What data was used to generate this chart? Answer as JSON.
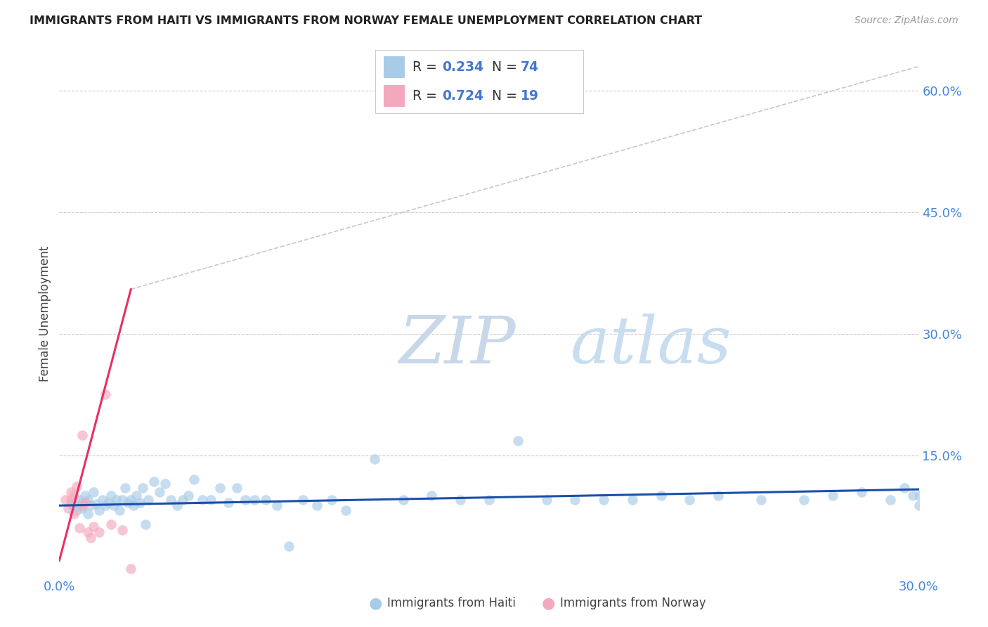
{
  "title": "IMMIGRANTS FROM HAITI VS IMMIGRANTS FROM NORWAY FEMALE UNEMPLOYMENT CORRELATION CHART",
  "source": "Source: ZipAtlas.com",
  "ylabel": "Female Unemployment",
  "xlim": [
    0.0,
    0.3
  ],
  "ylim": [
    0.0,
    0.65
  ],
  "haiti_R": 0.234,
  "haiti_N": 74,
  "norway_R": 0.724,
  "norway_N": 19,
  "haiti_color": "#a8cce8",
  "norway_color": "#f4a8bc",
  "haiti_line_color": "#1a4faa",
  "norway_line_color": "#e83060",
  "dashed_line_color": "#c8c8c8",
  "background_color": "#ffffff",
  "legend_labels": [
    "Immigrants from Haiti",
    "Immigrants from Norway"
  ],
  "legend_text_color": "#4477cc",
  "haiti_scatter_x": [
    0.004,
    0.005,
    0.006,
    0.007,
    0.008,
    0.008,
    0.009,
    0.01,
    0.01,
    0.011,
    0.012,
    0.013,
    0.014,
    0.015,
    0.016,
    0.017,
    0.018,
    0.019,
    0.02,
    0.021,
    0.022,
    0.023,
    0.024,
    0.025,
    0.026,
    0.027,
    0.028,
    0.029,
    0.03,
    0.031,
    0.033,
    0.035,
    0.037,
    0.039,
    0.041,
    0.043,
    0.045,
    0.047,
    0.05,
    0.053,
    0.056,
    0.059,
    0.062,
    0.065,
    0.068,
    0.072,
    0.076,
    0.08,
    0.085,
    0.09,
    0.095,
    0.1,
    0.11,
    0.12,
    0.13,
    0.14,
    0.15,
    0.16,
    0.17,
    0.18,
    0.19,
    0.2,
    0.21,
    0.22,
    0.23,
    0.245,
    0.26,
    0.27,
    0.28,
    0.29,
    0.295,
    0.298,
    0.3,
    0.3
  ],
  "haiti_scatter_y": [
    0.09,
    0.088,
    0.082,
    0.095,
    0.092,
    0.085,
    0.1,
    0.095,
    0.078,
    0.088,
    0.105,
    0.09,
    0.082,
    0.095,
    0.088,
    0.092,
    0.1,
    0.088,
    0.095,
    0.082,
    0.095,
    0.11,
    0.092,
    0.095,
    0.088,
    0.1,
    0.092,
    0.11,
    0.065,
    0.095,
    0.118,
    0.105,
    0.115,
    0.095,
    0.088,
    0.095,
    0.1,
    0.12,
    0.095,
    0.095,
    0.11,
    0.092,
    0.11,
    0.095,
    0.095,
    0.095,
    0.088,
    0.038,
    0.095,
    0.088,
    0.095,
    0.082,
    0.145,
    0.095,
    0.1,
    0.095,
    0.095,
    0.168,
    0.095,
    0.095,
    0.095,
    0.095,
    0.1,
    0.095,
    0.1,
    0.095,
    0.095,
    0.1,
    0.105,
    0.095,
    0.11,
    0.1,
    0.088,
    0.1
  ],
  "norway_scatter_x": [
    0.002,
    0.003,
    0.004,
    0.004,
    0.005,
    0.005,
    0.006,
    0.007,
    0.008,
    0.008,
    0.009,
    0.01,
    0.011,
    0.012,
    0.014,
    0.016,
    0.018,
    0.022,
    0.025
  ],
  "norway_scatter_y": [
    0.095,
    0.085,
    0.105,
    0.095,
    0.1,
    0.078,
    0.112,
    0.06,
    0.088,
    0.175,
    0.092,
    0.055,
    0.048,
    0.062,
    0.055,
    0.225,
    0.065,
    0.058,
    0.01
  ],
  "haiti_line_x": [
    0.0,
    0.3
  ],
  "haiti_line_y": [
    0.088,
    0.108
  ],
  "norway_line_x": [
    0.0,
    0.025
  ],
  "norway_line_y": [
    0.02,
    0.355
  ],
  "dashed_line_x": [
    0.025,
    0.3
  ],
  "dashed_line_y": [
    0.355,
    0.63
  ]
}
